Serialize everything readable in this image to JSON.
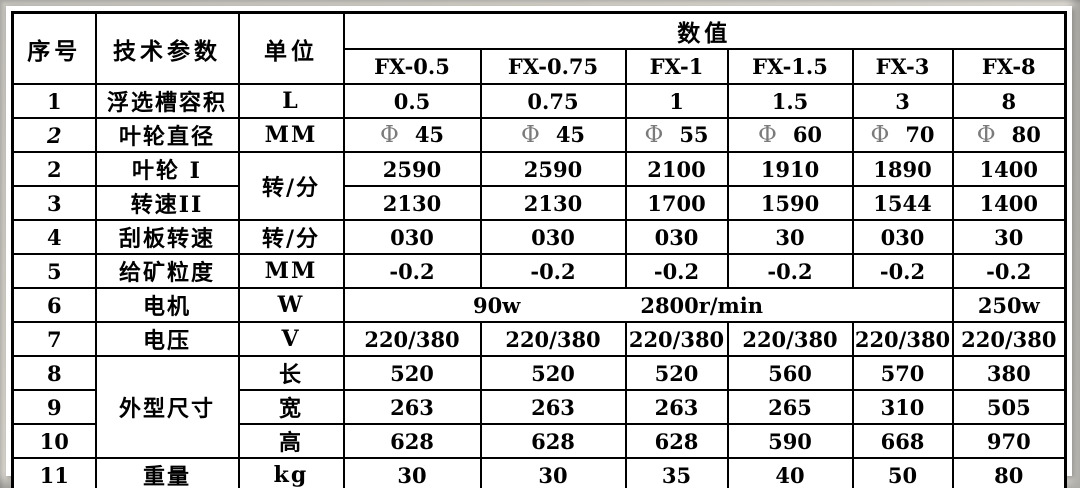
{
  "colors": {
    "border": "#000000",
    "text": "#000000",
    "phi": "#7b7b7b",
    "paper": "#ffffff",
    "backdrop_gray": "#d3d0c8"
  },
  "phi_symbol": "Φ",
  "table": {
    "header": {
      "col_seq": "序号",
      "col_param": "技术参数",
      "col_unit": "单位",
      "col_values": "数值",
      "models": [
        "FX-0.5",
        "FX-0.75",
        "FX-1",
        "FX-1.5",
        "FX-3",
        "FX-8"
      ]
    },
    "rows": [
      {
        "cells": [
          {
            "t": "1",
            "kind": "seq"
          },
          {
            "t": "浮选槽容积",
            "kind": "param"
          },
          {
            "t": "L",
            "kind": "unit"
          },
          {
            "t": "0.5"
          },
          {
            "t": "0.75"
          },
          {
            "t": "1"
          },
          {
            "t": "1.5"
          },
          {
            "t": "3"
          },
          {
            "t": "8"
          }
        ]
      },
      {
        "cells": [
          {
            "t": "2",
            "kind": "seq",
            "italic": true
          },
          {
            "t": "叶轮直径",
            "kind": "param"
          },
          {
            "t": "MM",
            "kind": "unit"
          },
          {
            "t": "45",
            "phi": true
          },
          {
            "t": "45",
            "phi": true
          },
          {
            "t": "55",
            "phi": true
          },
          {
            "t": "60",
            "phi": true
          },
          {
            "t": "70",
            "phi": true
          },
          {
            "t": "80",
            "phi": true
          }
        ]
      },
      {
        "cells": [
          {
            "t": "2",
            "kind": "seq"
          },
          {
            "t": "叶轮 I",
            "kind": "param"
          },
          {
            "t": "转/分",
            "kind": "unit",
            "rowspan": 2
          },
          {
            "t": "2590"
          },
          {
            "t": "2590"
          },
          {
            "t": "2100"
          },
          {
            "t": "1910"
          },
          {
            "t": "1890"
          },
          {
            "t": "1400"
          }
        ]
      },
      {
        "cells": [
          {
            "t": "3",
            "kind": "seq"
          },
          {
            "t": "转速II",
            "kind": "param"
          },
          {
            "t": "2130"
          },
          {
            "t": "2130"
          },
          {
            "t": "1700"
          },
          {
            "t": "1590"
          },
          {
            "t": "1544"
          },
          {
            "t": "1400"
          }
        ]
      },
      {
        "cells": [
          {
            "t": "4",
            "kind": "seq"
          },
          {
            "t": "刮板转速",
            "kind": "param"
          },
          {
            "t": "转/分",
            "kind": "unit"
          },
          {
            "t": "030"
          },
          {
            "t": "030"
          },
          {
            "t": "030"
          },
          {
            "t": "30"
          },
          {
            "t": "030"
          },
          {
            "t": "30"
          }
        ]
      },
      {
        "cells": [
          {
            "t": "5",
            "kind": "seq"
          },
          {
            "t": "给矿粒度",
            "kind": "param"
          },
          {
            "t": "MM",
            "kind": "unit"
          },
          {
            "t": "-0.2"
          },
          {
            "t": "-0.2"
          },
          {
            "t": "-0.2"
          },
          {
            "t": "-0.2"
          },
          {
            "t": "-0.2"
          },
          {
            "t": "-0.2"
          }
        ]
      },
      {
        "cells": [
          {
            "t": "6",
            "kind": "seq"
          },
          {
            "t": "电机",
            "kind": "param"
          },
          {
            "t": "W",
            "kind": "unit"
          },
          {
            "parts": [
              "90w",
              "2800r/min"
            ],
            "colspan": 5,
            "kind": "motor"
          },
          {
            "t": "250w"
          }
        ]
      },
      {
        "cells": [
          {
            "t": "7",
            "kind": "seq"
          },
          {
            "t": "电压",
            "kind": "param"
          },
          {
            "t": "V",
            "kind": "unit"
          },
          {
            "t": "220/380"
          },
          {
            "t": "220/380"
          },
          {
            "t": "220/380"
          },
          {
            "t": "220/380"
          },
          {
            "t": "220/380"
          },
          {
            "t": "220/380"
          }
        ]
      },
      {
        "cells": [
          {
            "t": "8",
            "kind": "seq"
          },
          {
            "t": "外型尺寸",
            "kind": "param",
            "rowspan": 3
          },
          {
            "t": "长",
            "kind": "unit-cjk"
          },
          {
            "t": "520"
          },
          {
            "t": "520"
          },
          {
            "t": "520"
          },
          {
            "t": "560"
          },
          {
            "t": "570"
          },
          {
            "t": "380"
          }
        ]
      },
      {
        "cells": [
          {
            "t": "9",
            "kind": "seq"
          },
          {
            "t": "宽",
            "kind": "unit-cjk"
          },
          {
            "t": "263"
          },
          {
            "t": "263"
          },
          {
            "t": "263"
          },
          {
            "t": "265"
          },
          {
            "t": "310"
          },
          {
            "t": "505"
          }
        ]
      },
      {
        "cells": [
          {
            "t": "10",
            "kind": "seq"
          },
          {
            "t": "高",
            "kind": "unit-cjk"
          },
          {
            "t": "628"
          },
          {
            "t": "628"
          },
          {
            "t": "628"
          },
          {
            "t": "590"
          },
          {
            "t": "668"
          },
          {
            "t": "970"
          }
        ]
      },
      {
        "cells": [
          {
            "t": "11",
            "kind": "seq"
          },
          {
            "t": "重量",
            "kind": "param"
          },
          {
            "t": "kg",
            "kind": "unit"
          },
          {
            "t": "30"
          },
          {
            "t": "30"
          },
          {
            "t": "35"
          },
          {
            "t": "40"
          },
          {
            "t": "50"
          },
          {
            "t": "80"
          }
        ]
      }
    ]
  }
}
